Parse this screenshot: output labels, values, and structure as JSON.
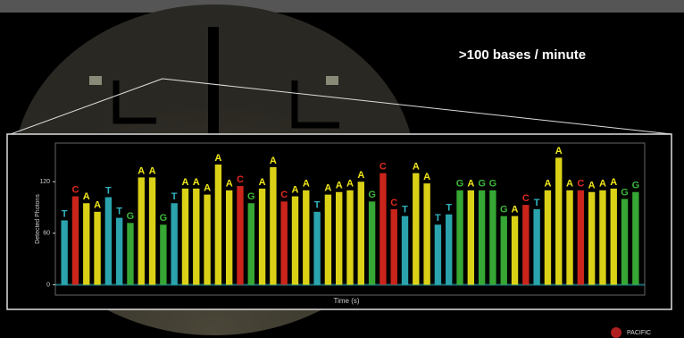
{
  "slide": {
    "headline": ">100 bases / minute",
    "logo": "PACIFIC"
  },
  "chart_data": {
    "type": "bar",
    "y_label": "Detected Photons",
    "x_label": "Time (s)",
    "categories": [
      "T",
      "C",
      "A",
      "A",
      "T",
      "T",
      "G",
      "A",
      "A",
      "G",
      "T",
      "A",
      "A",
      "A",
      "A",
      "A",
      "C",
      "G",
      "A",
      "A",
      "C",
      "A",
      "A",
      "T",
      "A",
      "A",
      "A",
      "A",
      "G",
      "C",
      "C",
      "T",
      "A",
      "A",
      "T",
      "T",
      "G",
      "A",
      "G",
      "G",
      "G",
      "A",
      "C",
      "T",
      "A",
      "A",
      "A",
      "C",
      "A",
      "A",
      "A",
      "G",
      "G"
    ],
    "values": [
      75,
      103,
      95,
      85,
      102,
      78,
      72,
      125,
      125,
      70,
      95,
      112,
      112,
      105,
      140,
      110,
      115,
      95,
      112,
      137,
      97,
      103,
      110,
      85,
      105,
      108,
      110,
      120,
      97,
      130,
      88,
      80,
      130,
      118,
      70,
      82,
      110,
      110,
      110,
      110,
      80,
      80,
      93,
      88,
      110,
      148,
      110,
      110,
      108,
      110,
      112,
      100,
      108
    ],
    "base_colors": {
      "A": "#f2e81a",
      "C": "#e0281e",
      "G": "#3cb83a",
      "T": "#2fb5c0"
    },
    "ylim": [
      -12,
      165
    ],
    "yticks": [
      0,
      60,
      120
    ]
  }
}
